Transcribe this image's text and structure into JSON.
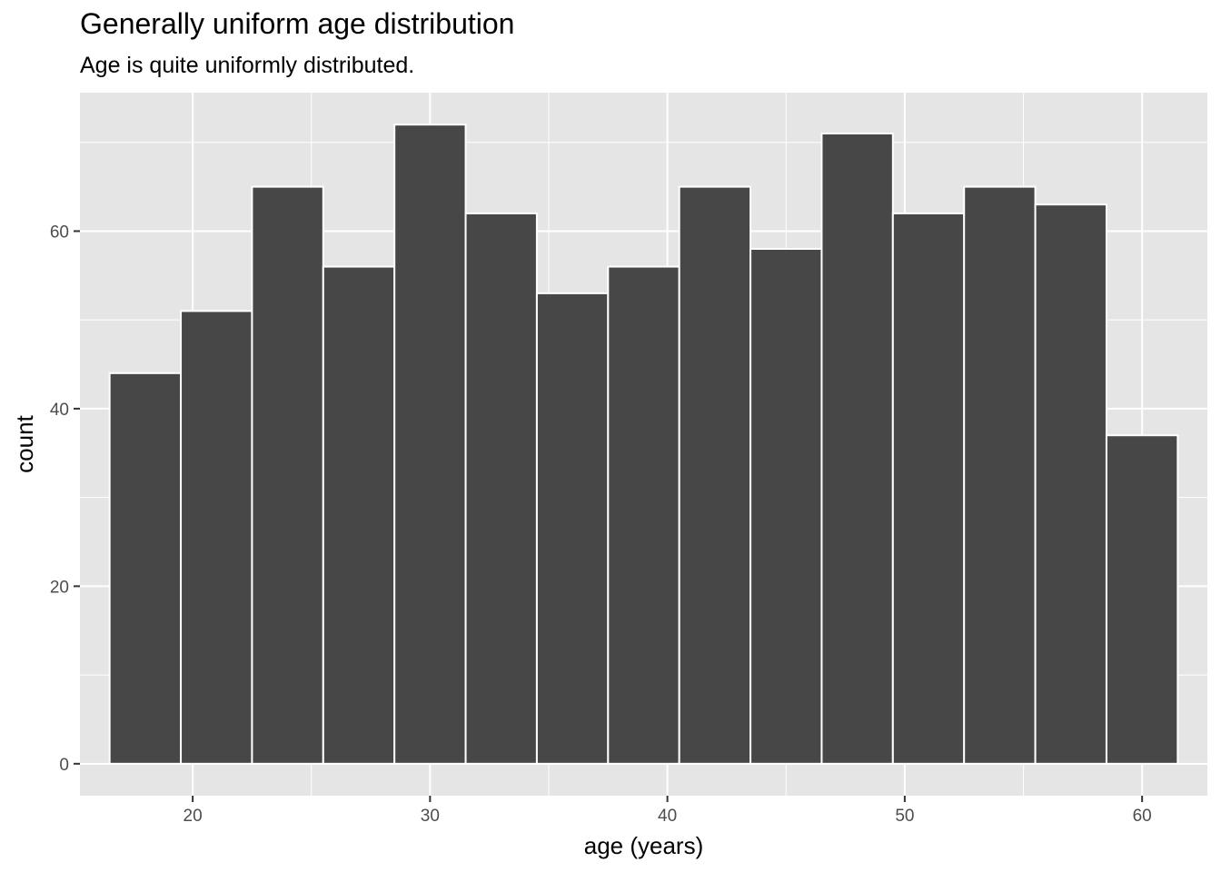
{
  "chart_data": {
    "type": "bar",
    "title": "Generally uniform age distribution",
    "subtitle": "Age is quite uniformly distributed.",
    "xlabel": "age (years)",
    "ylabel": "count",
    "bin_width": 3,
    "bins": [
      {
        "x": 18,
        "count": 44
      },
      {
        "x": 21,
        "count": 51
      },
      {
        "x": 24,
        "count": 65
      },
      {
        "x": 27,
        "count": 56
      },
      {
        "x": 30,
        "count": 72
      },
      {
        "x": 33,
        "count": 62
      },
      {
        "x": 36,
        "count": 53
      },
      {
        "x": 39,
        "count": 56
      },
      {
        "x": 42,
        "count": 65
      },
      {
        "x": 45,
        "count": 58
      },
      {
        "x": 48,
        "count": 71
      },
      {
        "x": 51,
        "count": 62
      },
      {
        "x": 54,
        "count": 65
      },
      {
        "x": 57,
        "count": 63
      },
      {
        "x": 60,
        "count": 37
      }
    ],
    "xlim": [
      15.25,
      62.75
    ],
    "ylim": [
      -3.6,
      75.6
    ],
    "x_ticks": [
      20,
      30,
      40,
      50,
      60
    ],
    "y_ticks": [
      0,
      20,
      40,
      60
    ],
    "grid": true,
    "colors": {
      "panel_background": "#e5e5e5",
      "grid_major": "#ffffff",
      "bar_fill": "#474747",
      "bar_outline": "#ffffff"
    }
  }
}
